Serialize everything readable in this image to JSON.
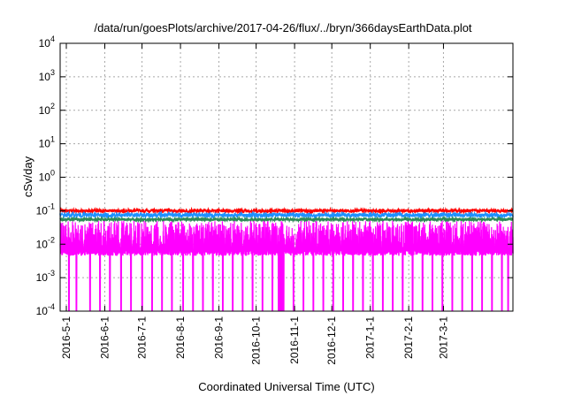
{
  "chart_data": {
    "type": "area",
    "title": "/data/run/goesPlots/archive/2017-04-26/flux/../bryn/366daysEarthData.plot",
    "xlabel": "Coordinated Universal Time (UTC)",
    "ylabel": "cSv/day",
    "yscale": "log",
    "ylim": [
      0.0001,
      10000
    ],
    "xlim": [
      "2016-04-26",
      "2017-04-26"
    ],
    "grid": true,
    "legend": "none",
    "x_ticks": [
      "2016-5-1",
      "2016-6-1",
      "2016-7-1",
      "2016-8-1",
      "2016-9-1",
      "2016-10-1",
      "2016-11-1",
      "2016-12-1",
      "2017-1-1",
      "2017-2-1",
      "2017-3-1"
    ],
    "y_ticks": [
      {
        "value": 0.0001,
        "mantissa": "10",
        "exponent": "-4"
      },
      {
        "value": 0.001,
        "mantissa": "10",
        "exponent": "-3"
      },
      {
        "value": 0.01,
        "mantissa": "10",
        "exponent": "-2"
      },
      {
        "value": 0.1,
        "mantissa": "10",
        "exponent": "-1"
      },
      {
        "value": 1,
        "mantissa": "10",
        "exponent": "0"
      },
      {
        "value": 10,
        "mantissa": "10",
        "exponent": "1"
      },
      {
        "value": 100,
        "mantissa": "10",
        "exponent": "2"
      },
      {
        "value": 1000,
        "mantissa": "10",
        "exponent": "3"
      },
      {
        "value": 10000,
        "mantissa": "10",
        "exponent": "4"
      }
    ],
    "series": [
      {
        "color": "#ff0000",
        "typical_max": 0.11,
        "typical_min": 0.09
      },
      {
        "color": "#1e90ff",
        "typical_max": 0.085,
        "typical_min": 0.065
      },
      {
        "color": "#2e8b57",
        "typical_max": 0.06,
        "typical_min": 0.05
      },
      {
        "color": "#ff00ff",
        "typical_max": 0.05,
        "typical_min": 0.005,
        "dropouts_to": 0.0001
      }
    ],
    "dropout_dates": [
      "2016-05-03",
      "2016-05-09",
      "2016-05-20",
      "2016-05-28",
      "2016-06-05",
      "2016-06-14",
      "2016-06-22",
      "2016-07-01",
      "2016-07-09",
      "2016-07-17",
      "2016-07-25",
      "2016-08-03",
      "2016-08-11",
      "2016-08-19",
      "2016-08-27",
      "2016-09-04",
      "2016-09-12",
      "2016-09-20",
      "2016-09-28",
      "2016-10-06",
      "2016-10-14",
      "2016-10-19",
      "2016-10-20",
      "2016-10-21",
      "2016-10-22",
      "2016-10-23",
      "2016-10-31",
      "2016-11-08",
      "2016-11-16",
      "2016-11-24",
      "2016-12-02",
      "2016-12-10",
      "2016-12-18",
      "2016-12-26",
      "2017-01-03",
      "2017-01-11",
      "2017-01-19",
      "2017-01-27",
      "2017-02-04",
      "2017-02-12",
      "2017-02-20",
      "2017-02-28",
      "2017-03-08",
      "2017-03-16",
      "2017-03-24",
      "2017-04-01",
      "2017-04-09",
      "2017-04-17",
      "2017-04-22"
    ]
  }
}
